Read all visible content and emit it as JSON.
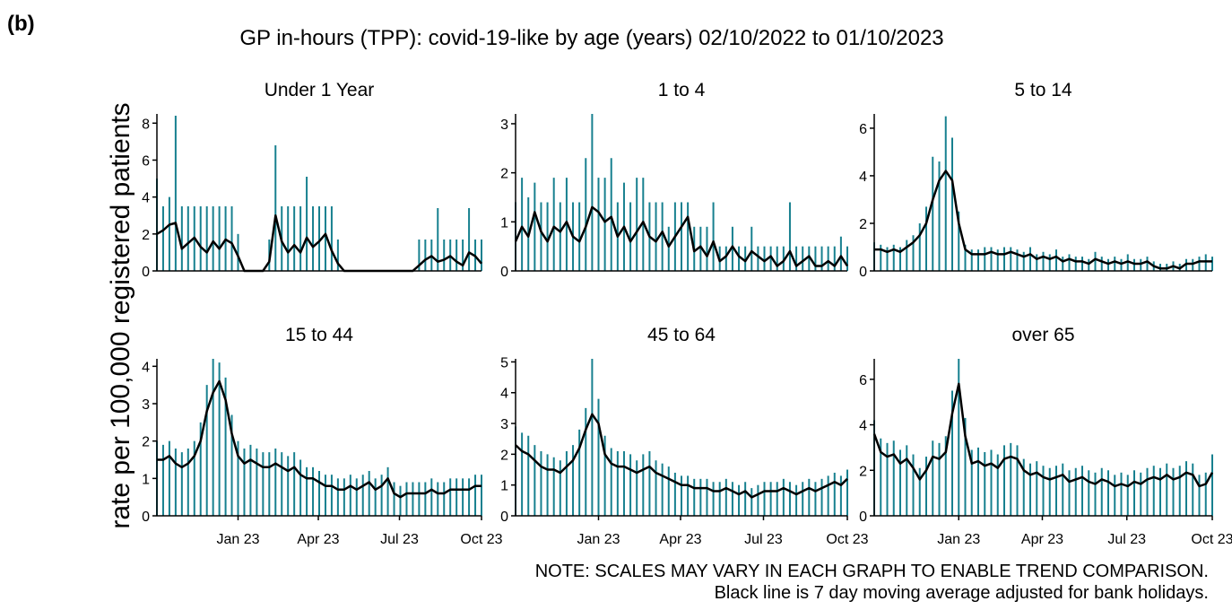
{
  "panel_label": "(b)",
  "chart_data": {
    "type": "line",
    "title": "GP in-hours (TPP): covid-19-like by age (years) 02/10/2022 to 01/10/2023",
    "ylabel": "rate per 100,000 registered patients",
    "notes": [
      "NOTE: SCALES MAY VARY IN EACH GRAPH TO ENABLE TREND COMPARISON.",
      "Black line is 7 day moving average adjusted for bank holidays."
    ],
    "x": [
      0,
      7,
      14,
      21,
      28,
      35,
      42,
      49,
      56,
      63,
      70,
      77,
      84,
      91,
      98,
      105,
      112,
      119,
      126,
      133,
      140,
      147,
      154,
      161,
      168,
      175,
      182,
      189,
      196,
      203,
      210,
      217,
      224,
      231,
      238,
      245,
      252,
      259,
      266,
      273,
      280,
      287,
      294,
      301,
      308,
      315,
      322,
      329,
      336,
      343,
      350,
      357,
      364
    ],
    "xlim": [
      0,
      364
    ],
    "xticks": [
      {
        "value": 91,
        "label": "Jan 23"
      },
      {
        "value": 181,
        "label": "Apr 23"
      },
      {
        "value": 272,
        "label": "Jul 23"
      },
      {
        "value": 364,
        "label": "Oct 23"
      }
    ],
    "panels": [
      {
        "title": "Under 1 Year",
        "ylim": [
          0,
          8.5
        ],
        "yticks": [
          0,
          2,
          4,
          6,
          8
        ],
        "series": [
          {
            "color": "#17808f",
            "values": [
              5,
              3.5,
              4,
              8.4,
              3.5,
              3.5,
              3.5,
              3.5,
              3.5,
              3.5,
              3.5,
              3.5,
              3.5,
              2,
              0,
              0,
              0,
              0,
              1.7,
              6.8,
              3.5,
              3.5,
              3.5,
              3.5,
              5.1,
              3.5,
              3.5,
              3.5,
              3.5,
              1.7,
              0,
              0,
              0,
              0,
              0,
              0,
              0,
              0,
              0,
              0,
              0,
              0,
              1.7,
              1.7,
              1.7,
              3.4,
              1.7,
              1.7,
              1.7,
              1.7,
              3.4,
              1.7,
              1.7
            ]
          },
          {
            "color": "#000000",
            "values": [
              2,
              2.2,
              2.5,
              2.6,
              1.2,
              1.5,
              1.8,
              1.3,
              1,
              1.6,
              1.2,
              1.7,
              1.5,
              0.8,
              0,
              0,
              0,
              0,
              0.5,
              3,
              1.6,
              1,
              1.4,
              1,
              1.8,
              1.3,
              1.6,
              2,
              1.1,
              0.4,
              0,
              0,
              0,
              0,
              0,
              0,
              0,
              0,
              0,
              0,
              0,
              0,
              0.3,
              0.6,
              0.8,
              0.5,
              0.6,
              0.8,
              0.5,
              0.3,
              1,
              0.8,
              0.4
            ]
          }
        ]
      },
      {
        "title": "1 to 4",
        "ylim": [
          0,
          3.2
        ],
        "yticks": [
          0,
          1,
          2,
          3
        ],
        "series": [
          {
            "color": "#17808f",
            "values": [
              1.4,
              1.9,
              1.5,
              1.8,
              1.4,
              1.4,
              1.9,
              1.4,
              1.9,
              1.4,
              1.4,
              2.3,
              3.2,
              1.9,
              1.9,
              2.3,
              1.4,
              1.8,
              1.4,
              1.9,
              1.9,
              1.4,
              1.4,
              1.4,
              0.9,
              1.4,
              1.4,
              1.4,
              0.9,
              0.9,
              0.9,
              1.4,
              0.5,
              0.5,
              0.9,
              0.5,
              0.5,
              0.9,
              0.5,
              0.5,
              0.5,
              0.5,
              0.5,
              1.4,
              0.5,
              0.5,
              0.5,
              0.5,
              0.5,
              0.5,
              0.5,
              0.7,
              0.5
            ]
          },
          {
            "color": "#000000",
            "values": [
              0.6,
              0.9,
              0.7,
              1.2,
              0.8,
              0.6,
              0.9,
              0.8,
              1,
              0.7,
              0.6,
              0.9,
              1.3,
              1.2,
              1,
              1.1,
              0.7,
              0.9,
              0.6,
              0.8,
              1,
              0.7,
              0.6,
              0.8,
              0.5,
              0.7,
              0.9,
              1.1,
              0.4,
              0.5,
              0.3,
              0.6,
              0.2,
              0.3,
              0.5,
              0.3,
              0.2,
              0.4,
              0.3,
              0.2,
              0.3,
              0.1,
              0.2,
              0.4,
              0.1,
              0.2,
              0.3,
              0.1,
              0.1,
              0.2,
              0.1,
              0.3,
              0.1
            ]
          }
        ]
      },
      {
        "title": "5 to 14",
        "ylim": [
          0,
          6.6
        ],
        "yticks": [
          0,
          2,
          4,
          6
        ],
        "series": [
          {
            "color": "#17808f",
            "values": [
              1.2,
              1.1,
              1,
              1.1,
              1,
              1.3,
              1.5,
              2,
              2.7,
              4.8,
              4.6,
              6.5,
              5.6,
              2.5,
              1.1,
              0.9,
              0.9,
              1,
              1,
              0.9,
              1,
              1,
              0.9,
              0.8,
              1,
              0.7,
              0.8,
              0.7,
              0.9,
              0.6,
              0.7,
              0.6,
              0.6,
              0.5,
              0.8,
              0.6,
              0.5,
              0.6,
              0.5,
              0.7,
              0.5,
              0.5,
              0.6,
              0.4,
              0.3,
              0.3,
              0.4,
              0.3,
              0.5,
              0.5,
              0.6,
              0.7,
              0.6
            ]
          },
          {
            "color": "#000000",
            "values": [
              0.9,
              0.9,
              0.8,
              0.9,
              0.8,
              1,
              1.2,
              1.5,
              2,
              3,
              3.8,
              4.2,
              3.8,
              2,
              0.9,
              0.7,
              0.7,
              0.7,
              0.8,
              0.7,
              0.7,
              0.8,
              0.7,
              0.6,
              0.7,
              0.5,
              0.6,
              0.5,
              0.6,
              0.4,
              0.5,
              0.4,
              0.4,
              0.3,
              0.5,
              0.4,
              0.3,
              0.4,
              0.3,
              0.4,
              0.3,
              0.3,
              0.4,
              0.2,
              0.1,
              0.1,
              0.2,
              0.1,
              0.3,
              0.3,
              0.4,
              0.4,
              0.4
            ]
          }
        ]
      },
      {
        "title": "15 to 44",
        "ylim": [
          0,
          4.2
        ],
        "yticks": [
          0,
          1,
          2,
          3,
          4
        ],
        "series": [
          {
            "color": "#17808f",
            "values": [
              2,
              1.9,
              2,
              1.8,
              1.7,
              1.8,
              2,
              2.5,
              3.5,
              4.2,
              4.1,
              3.7,
              2.7,
              2,
              1.8,
              1.9,
              1.8,
              1.7,
              1.7,
              1.8,
              1.7,
              1.6,
              1.7,
              1.5,
              1.3,
              1.3,
              1.2,
              1.1,
              1.1,
              1,
              1,
              1.1,
              1,
              1.1,
              1.2,
              1,
              1.1,
              1.3,
              0.9,
              0.8,
              0.9,
              0.9,
              0.9,
              0.9,
              1,
              0.9,
              0.9,
              1,
              1,
              1,
              1,
              1.1,
              1.1
            ]
          },
          {
            "color": "#000000",
            "values": [
              1.5,
              1.5,
              1.6,
              1.4,
              1.3,
              1.4,
              1.6,
              2,
              2.8,
              3.3,
              3.6,
              3.1,
              2.2,
              1.6,
              1.4,
              1.5,
              1.4,
              1.3,
              1.3,
              1.4,
              1.3,
              1.2,
              1.3,
              1.1,
              1,
              1,
              0.9,
              0.8,
              0.8,
              0.7,
              0.7,
              0.8,
              0.7,
              0.8,
              0.9,
              0.7,
              0.8,
              1,
              0.6,
              0.5,
              0.6,
              0.6,
              0.6,
              0.6,
              0.7,
              0.6,
              0.6,
              0.7,
              0.7,
              0.7,
              0.7,
              0.8,
              0.8
            ]
          }
        ]
      },
      {
        "title": "45 to 64",
        "ylim": [
          0,
          5.1
        ],
        "yticks": [
          0,
          1,
          2,
          3,
          4,
          5
        ],
        "series": [
          {
            "color": "#17808f",
            "values": [
              2.9,
              2.7,
              2.6,
              2.3,
              2.1,
              2,
              1.9,
              1.8,
              2.1,
              2.3,
              2.8,
              3.5,
              5.1,
              3.8,
              2.6,
              2.2,
              2.1,
              2.1,
              2,
              1.8,
              2,
              2.1,
              1.8,
              1.7,
              1.6,
              1.4,
              1.3,
              1.3,
              1.2,
              1.2,
              1.2,
              1.1,
              1.1,
              1.2,
              1.1,
              1,
              1.1,
              0.9,
              1,
              1.1,
              1.1,
              1.1,
              1.2,
              1.1,
              1,
              1.1,
              1.2,
              1.1,
              1.2,
              1.3,
              1.4,
              1.3,
              1.5
            ]
          },
          {
            "color": "#000000",
            "values": [
              2.3,
              2.1,
              2,
              1.8,
              1.6,
              1.5,
              1.5,
              1.4,
              1.6,
              1.8,
              2.2,
              2.8,
              3.3,
              3,
              2,
              1.7,
              1.6,
              1.6,
              1.5,
              1.4,
              1.5,
              1.6,
              1.4,
              1.3,
              1.2,
              1.1,
              1,
              1,
              0.9,
              0.9,
              0.9,
              0.8,
              0.8,
              0.9,
              0.8,
              0.7,
              0.8,
              0.6,
              0.7,
              0.8,
              0.8,
              0.8,
              0.9,
              0.8,
              0.7,
              0.8,
              0.9,
              0.8,
              0.9,
              1,
              1.1,
              1,
              1.2
            ]
          }
        ]
      },
      {
        "title": "over 65",
        "ylim": [
          0,
          6.9
        ],
        "yticks": [
          0,
          2,
          4,
          6
        ],
        "series": [
          {
            "color": "#17808f",
            "values": [
              4.2,
              3.4,
              3.2,
              3.3,
              2.9,
              3.1,
              2.7,
              2.1,
              2.6,
              3.3,
              3.2,
              3.5,
              5.5,
              6.9,
              4.3,
              2.9,
              3,
              2.8,
              2.9,
              2.7,
              3.1,
              3.2,
              3.1,
              2.5,
              2.3,
              2.4,
              2.2,
              2.1,
              2.2,
              2.3,
              2,
              2.1,
              2.2,
              2,
              1.9,
              2.1,
              2,
              1.8,
              1.9,
              1.8,
              2,
              1.9,
              2.1,
              2.2,
              2.1,
              2.3,
              2.1,
              2.2,
              2.4,
              2.3,
              1.8,
              1.9,
              2.7
            ]
          },
          {
            "color": "#000000",
            "values": [
              3.6,
              2.8,
              2.6,
              2.7,
              2.3,
              2.5,
              2.1,
              1.6,
              2,
              2.6,
              2.5,
              2.8,
              4.5,
              5.8,
              3.5,
              2.3,
              2.4,
              2.2,
              2.3,
              2.1,
              2.5,
              2.6,
              2.5,
              2,
              1.8,
              1.9,
              1.7,
              1.6,
              1.7,
              1.8,
              1.5,
              1.6,
              1.7,
              1.5,
              1.4,
              1.6,
              1.5,
              1.3,
              1.4,
              1.3,
              1.5,
              1.4,
              1.6,
              1.7,
              1.6,
              1.8,
              1.6,
              1.7,
              1.9,
              1.8,
              1.3,
              1.4,
              1.9
            ]
          }
        ]
      }
    ]
  }
}
